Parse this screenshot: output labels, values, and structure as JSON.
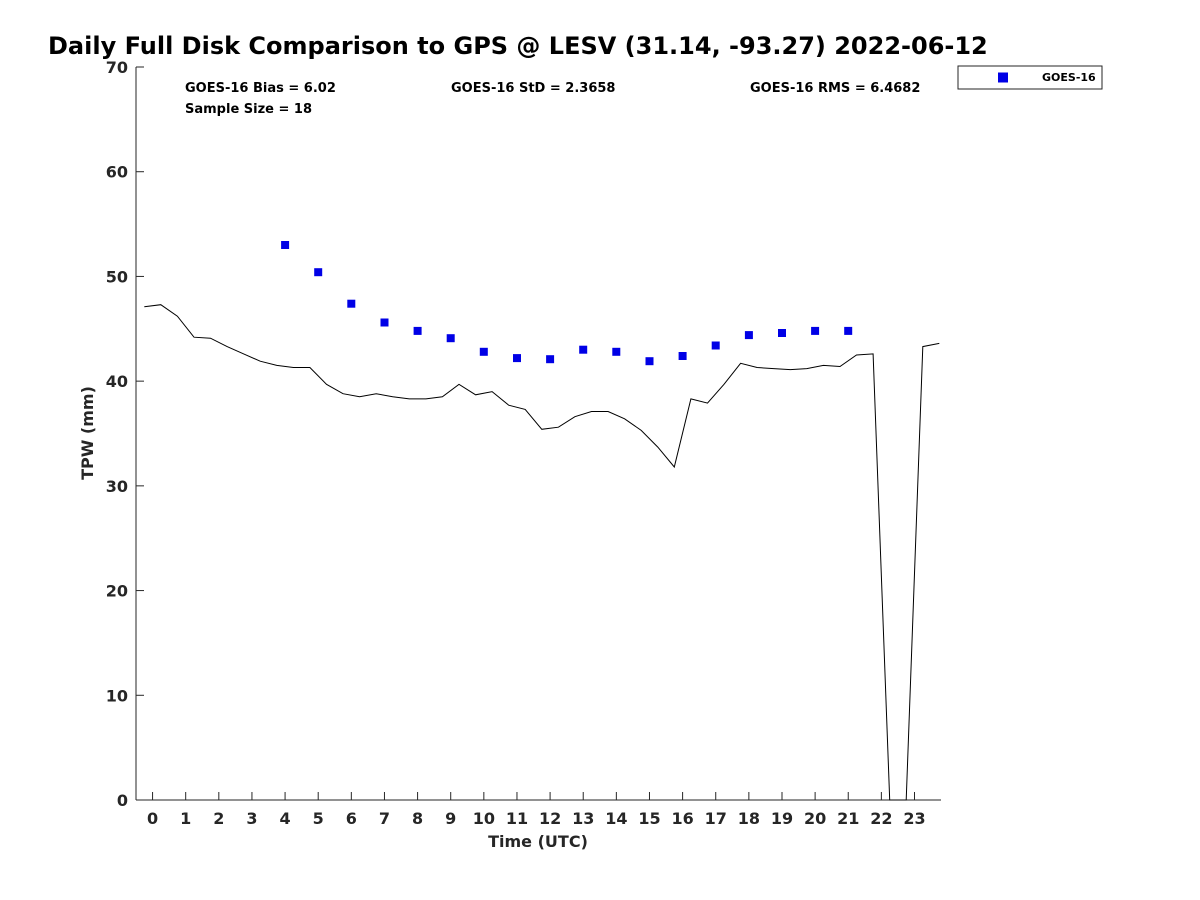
{
  "chart_data": {
    "type": "scatter",
    "title": "Daily Full Disk Comparison to GPS @ LESV (31.14, -93.27) 2022-06-12",
    "xlabel": "Time (UTC)",
    "ylabel": "TPW (mm)",
    "xlim": [
      -0.5,
      23.8
    ],
    "ylim": [
      0,
      70
    ],
    "x_ticks": [
      0,
      1,
      2,
      3,
      4,
      5,
      6,
      7,
      8,
      9,
      10,
      11,
      12,
      13,
      14,
      15,
      16,
      17,
      18,
      19,
      20,
      21,
      22,
      23
    ],
    "y_ticks": [
      0,
      10,
      20,
      30,
      40,
      50,
      60,
      70
    ],
    "grid": false,
    "legend_position": "top-right",
    "stats": {
      "bias": "GOES-16 Bias = 6.02",
      "sample_size": "Sample Size = 18",
      "std": "GOES-16 StD = 2.3658",
      "rms": "GOES-16 RMS = 6.4682"
    },
    "series": [
      {
        "name": "GOES-16",
        "type": "scatter",
        "color": "#0000e6",
        "marker": "square",
        "x": [
          4,
          5,
          6,
          7,
          8,
          9,
          10,
          11,
          12,
          13,
          14,
          15,
          16,
          17,
          18,
          19,
          20,
          21
        ],
        "y": [
          53.0,
          50.4,
          47.4,
          45.6,
          44.8,
          44.1,
          42.8,
          42.2,
          42.1,
          43.0,
          42.8,
          41.9,
          42.4,
          43.4,
          44.4,
          44.6,
          44.8,
          44.8
        ]
      },
      {
        "type": "line",
        "color": "#000000",
        "x": [
          -0.25,
          0.25,
          0.75,
          1.25,
          1.75,
          2.25,
          2.75,
          3.25,
          3.75,
          4.25,
          4.75,
          5.25,
          5.75,
          6.25,
          6.75,
          7.25,
          7.75,
          8.25,
          8.75,
          9.25,
          9.75,
          10.25,
          10.75,
          11.25,
          11.75,
          12.25,
          12.75,
          13.25,
          13.75,
          14.25,
          14.75,
          15.25,
          15.75,
          16.25,
          16.75,
          17.25,
          17.75,
          18.25,
          18.75,
          19.25,
          19.75,
          20.25,
          20.75,
          21.25,
          21.75,
          22.25,
          22.75,
          23.25,
          23.75
        ],
        "y": [
          47.1,
          47.3,
          46.2,
          44.2,
          44.1,
          43.3,
          42.6,
          41.9,
          41.5,
          41.3,
          41.3,
          39.7,
          38.8,
          38.5,
          38.8,
          38.5,
          38.3,
          38.3,
          38.5,
          39.7,
          38.7,
          39.0,
          37.7,
          37.3,
          35.4,
          35.6,
          36.6,
          37.1,
          37.1,
          36.4,
          35.3,
          33.7,
          31.8,
          38.3,
          37.9,
          39.7,
          41.7,
          41.3,
          41.2,
          41.1,
          41.2,
          41.5,
          41.4,
          42.5,
          42.6,
          0,
          0,
          43.3,
          43.6
        ]
      }
    ]
  }
}
